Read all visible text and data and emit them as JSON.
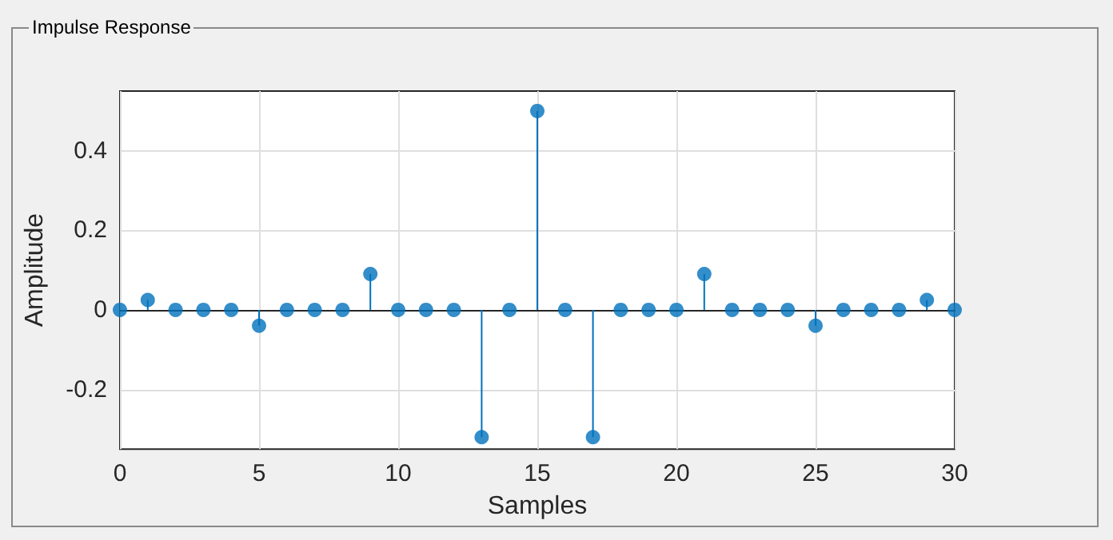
{
  "chart_data": {
    "type": "lollipop",
    "title": "Impulse Response",
    "xlabel": "Samples",
    "ylabel": "Amplitude",
    "x": [
      0,
      1,
      2,
      3,
      4,
      5,
      6,
      7,
      8,
      9,
      10,
      11,
      12,
      13,
      14,
      15,
      16,
      17,
      18,
      19,
      20,
      21,
      22,
      23,
      24,
      25,
      26,
      27,
      28,
      29,
      30
    ],
    "values": [
      0,
      0.025,
      0,
      0,
      0,
      -0.04,
      0,
      0,
      0,
      0.09,
      0,
      0,
      0,
      -0.32,
      0,
      0.5,
      0,
      -0.32,
      0,
      0,
      0,
      0.09,
      0,
      0,
      0,
      -0.04,
      0,
      0,
      0,
      0.025,
      0
    ],
    "color": "#0072bd",
    "xlim": [
      0,
      30
    ],
    "xticks": [
      0,
      5,
      10,
      15,
      20,
      25,
      30
    ],
    "ylim": [
      -0.35,
      0.55
    ],
    "yticks": [
      -0.2,
      0,
      0.2,
      0.4
    ],
    "grid": true,
    "marker": "circle"
  }
}
